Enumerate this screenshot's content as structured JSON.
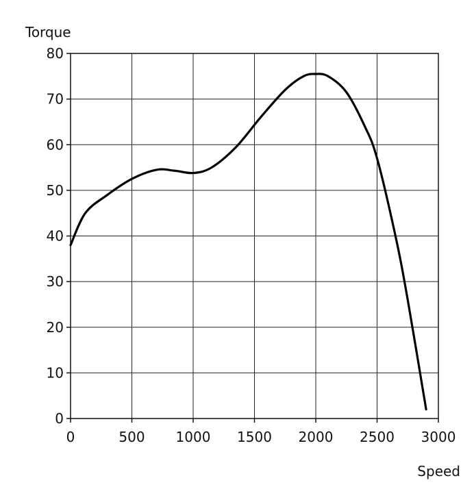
{
  "chart_data": {
    "type": "line",
    "xlabel": "Speed",
    "ylabel": "Torque",
    "xlim": [
      0,
      3000
    ],
    "ylim": [
      0,
      80
    ],
    "x_ticks": [
      0,
      500,
      1000,
      1500,
      2000,
      2500,
      3000
    ],
    "y_ticks": [
      0,
      10,
      20,
      30,
      40,
      50,
      60,
      70,
      80
    ],
    "grid": true,
    "series": [
      {
        "color": "#000000",
        "points": [
          [
            0,
            38
          ],
          [
            120,
            45
          ],
          [
            300,
            49
          ],
          [
            500,
            52.5
          ],
          [
            700,
            54.5
          ],
          [
            850,
            54.3
          ],
          [
            1000,
            53.8
          ],
          [
            1150,
            55
          ],
          [
            1350,
            59.5
          ],
          [
            1550,
            66
          ],
          [
            1750,
            72
          ],
          [
            1900,
            75
          ],
          [
            2000,
            75.5
          ],
          [
            2100,
            75
          ],
          [
            2250,
            71.5
          ],
          [
            2400,
            64
          ],
          [
            2500,
            57
          ],
          [
            2650,
            40
          ],
          [
            2750,
            26
          ],
          [
            2900,
            2
          ]
        ]
      }
    ]
  }
}
